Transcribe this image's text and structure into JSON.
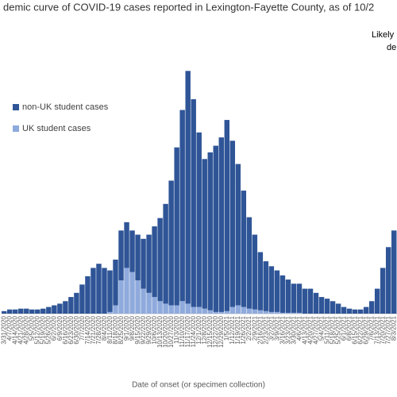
{
  "chart_data": {
    "type": "stacked-bar",
    "title": "demic curve of COVID-19 cases reported in Lexington-Fayette County, as of 10/2",
    "annotations": [
      "Likely",
      "de"
    ],
    "x_label": "Date of onset (or specimen collection)",
    "categories": [
      "3/31/2020",
      "4/7/2020",
      "4/14/2020",
      "4/21/2020",
      "4/28/2020",
      "5/5/2020",
      "5/12/2020",
      "5/19/2020",
      "5/26/2020",
      "6/2/2020",
      "6/9/2020",
      "6/16/2020",
      "6/23/2020",
      "6/30/2020",
      "7/7/2020",
      "7/14/2020",
      "7/21/2020",
      "7/28/2020",
      "8/4/2020",
      "8/11/2020",
      "8/18/2020",
      "8/25/2020",
      "9/1/2020",
      "9/8/2020",
      "9/15/2020",
      "9/22/2020",
      "9/29/2020",
      "10/6/2020",
      "10/13/2020",
      "10/20/2020",
      "10/27/2020",
      "11/3/2020",
      "11/10/2020",
      "11/17/2020",
      "11/24/2020",
      "12/1/2020",
      "12/8/2020",
      "12/15/2020",
      "12/22/2020",
      "12/29/2020",
      "1/5/2021",
      "1/12/2021",
      "1/19/2021",
      "1/26/2021",
      "2/2/2021",
      "2/9/2021",
      "2/16/2021",
      "2/23/2021",
      "3/2/2021",
      "3/9/2021",
      "3/16/2021",
      "3/23/2021",
      "3/30/2021",
      "4/6/2021",
      "4/13/2021",
      "4/20/2021",
      "4/27/2021",
      "5/4/2021",
      "5/11/2021",
      "5/18/2021",
      "5/25/2021",
      "6/1/2021",
      "6/8/2021",
      "6/15/2021",
      "6/22/2021",
      "6/29/2021",
      "7/6/2021",
      "7/13/2021",
      "7/20/2021",
      "7/27/2021",
      "8/3/2021"
    ],
    "series": [
      {
        "name": "non-UK student cases",
        "color": "#2f5597",
        "values": [
          3,
          5,
          5,
          6,
          6,
          5,
          5,
          6,
          8,
          10,
          12,
          15,
          20,
          25,
          35,
          45,
          55,
          60,
          55,
          50,
          55,
          60,
          55,
          50,
          55,
          60,
          70,
          85,
          100,
          120,
          150,
          190,
          230,
          280,
          250,
          210,
          180,
          190,
          200,
          210,
          230,
          200,
          170,
          140,
          110,
          90,
          70,
          60,
          55,
          50,
          45,
          40,
          35,
          35,
          30,
          30,
          25,
          20,
          18,
          15,
          12,
          8,
          6,
          5,
          5,
          8,
          15,
          30,
          55,
          80,
          100
        ]
      },
      {
        "name": "UK student cases",
        "color": "#8faadc",
        "values": [
          0,
          0,
          0,
          0,
          0,
          0,
          0,
          0,
          0,
          0,
          0,
          0,
          0,
          0,
          0,
          0,
          0,
          0,
          0,
          2,
          10,
          40,
          55,
          50,
          40,
          30,
          25,
          20,
          15,
          12,
          10,
          10,
          15,
          12,
          8,
          8,
          6,
          4,
          2,
          2,
          3,
          8,
          10,
          8,
          6,
          5,
          4,
          3,
          2,
          2,
          1,
          1,
          1,
          1,
          0,
          0,
          0,
          0,
          0,
          0,
          0,
          0,
          0,
          0,
          0,
          0,
          0,
          0,
          0,
          0,
          0
        ]
      }
    ],
    "stack_order": [
      "UK student cases",
      "non-UK student cases"
    ],
    "ylim": [
      0,
      320
    ]
  }
}
